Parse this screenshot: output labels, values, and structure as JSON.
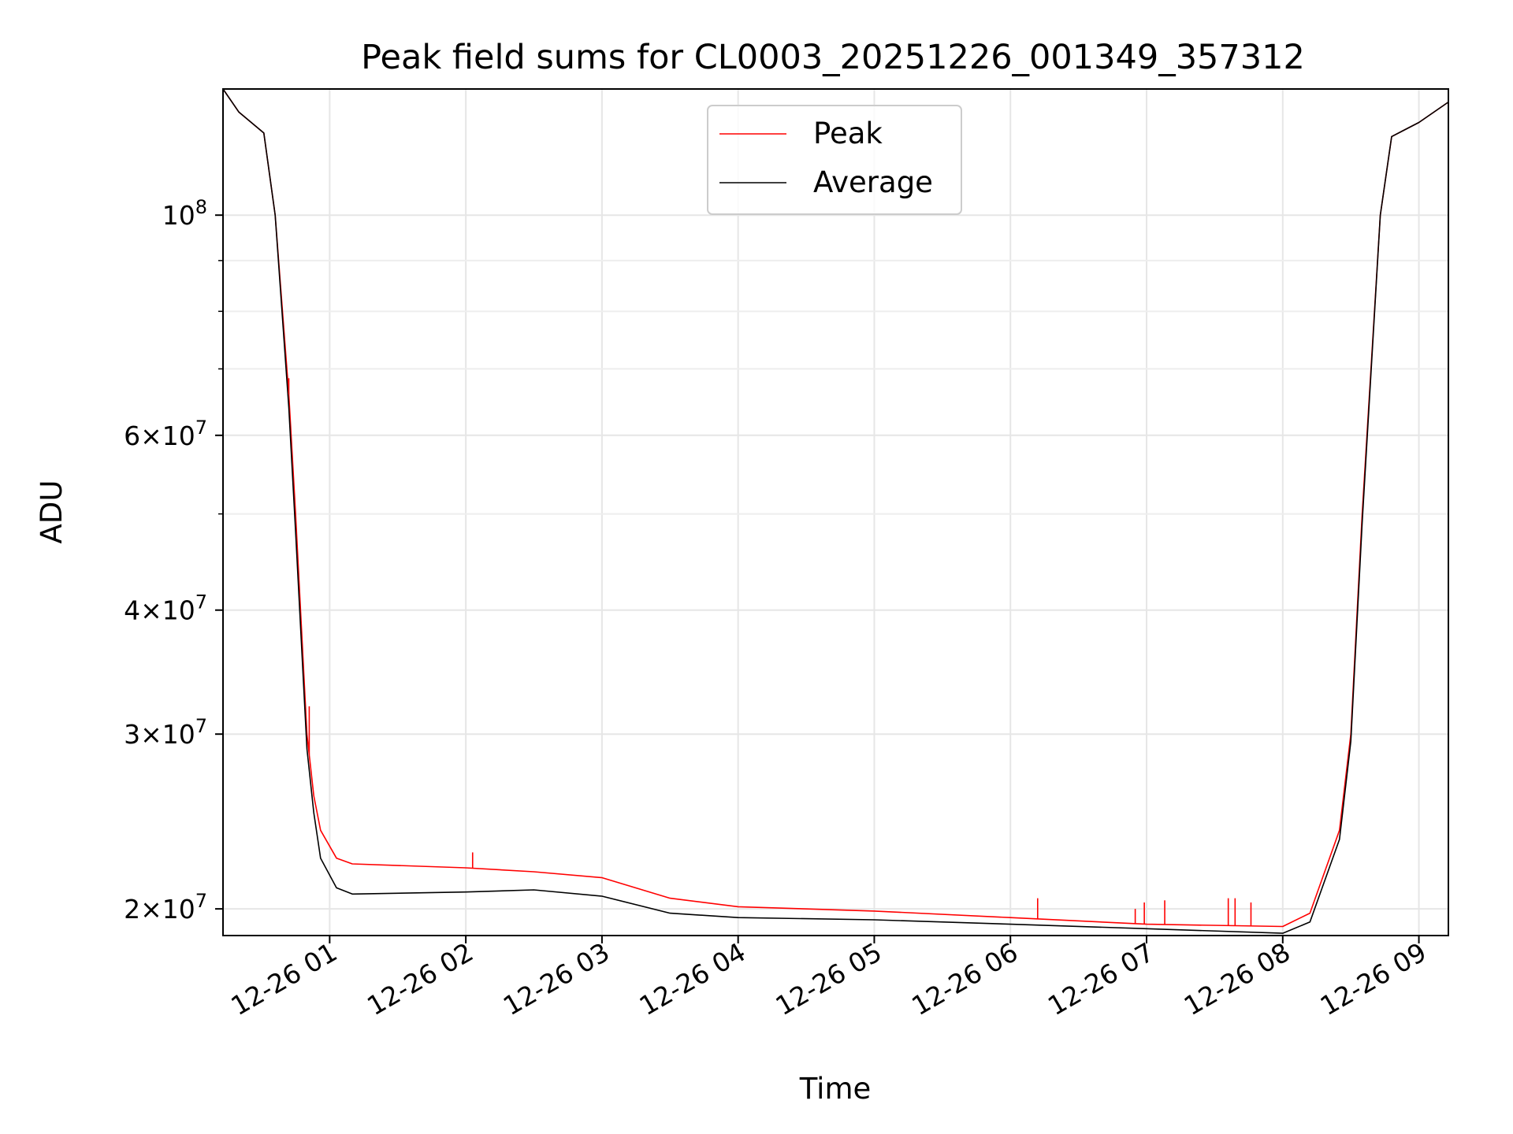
{
  "chart_data": {
    "type": "line",
    "title": "Peak field sums for CL0003_20251226_001349_357312",
    "xlabel": "Time",
    "ylabel": "ADU",
    "y_scale": "log",
    "grid": true,
    "legend_position": "top-center",
    "xlim": [
      "2025-12-26 00:13",
      "2025-12-26 09:13"
    ],
    "ylim": [
      18800000,
      134000000
    ],
    "x_ticks": [
      {
        "value": "2025-12-26 01:00",
        "label": "12-26 01"
      },
      {
        "value": "2025-12-26 02:00",
        "label": "12-26 02"
      },
      {
        "value": "2025-12-26 03:00",
        "label": "12-26 03"
      },
      {
        "value": "2025-12-26 04:00",
        "label": "12-26 04"
      },
      {
        "value": "2025-12-26 05:00",
        "label": "12-26 05"
      },
      {
        "value": "2025-12-26 06:00",
        "label": "12-26 06"
      },
      {
        "value": "2025-12-26 07:00",
        "label": "12-26 07"
      },
      {
        "value": "2025-12-26 08:00",
        "label": "12-26 08"
      },
      {
        "value": "2025-12-26 09:00",
        "label": "12-26 09"
      }
    ],
    "y_ticks": [
      {
        "value": 20000000,
        "mantissa": "2",
        "exponent": "7"
      },
      {
        "value": 30000000,
        "mantissa": "3",
        "exponent": "7"
      },
      {
        "value": 40000000,
        "mantissa": "4",
        "exponent": "7"
      },
      {
        "value": 60000000,
        "mantissa": "6",
        "exponent": "7"
      },
      {
        "value": 100000000,
        "mantissa": "",
        "exponent": "8"
      }
    ],
    "y_minor_ticks": [
      50000000,
      70000000,
      80000000,
      90000000
    ],
    "series": [
      {
        "name": "Peak",
        "color": "#ff0000",
        "points": [
          [
            "2025-12-26 00:13",
            134000000
          ],
          [
            "2025-12-26 00:20",
            127000000
          ],
          [
            "2025-12-26 00:31",
            121000000
          ],
          [
            "2025-12-26 00:36",
            100000000
          ],
          [
            "2025-12-26 00:42",
            66000000
          ],
          [
            "2025-12-26 00:45",
            50000000
          ],
          [
            "2025-12-26 00:50",
            30000000
          ],
          [
            "2025-12-26 00:53",
            26000000
          ],
          [
            "2025-12-26 00:56",
            24000000
          ],
          [
            "2025-12-26 01:03",
            22500000
          ],
          [
            "2025-12-26 01:10",
            22200000
          ],
          [
            "2025-12-26 02:00",
            22000000
          ],
          [
            "2025-12-26 02:30",
            21800000
          ],
          [
            "2025-12-26 03:00",
            21500000
          ],
          [
            "2025-12-26 03:30",
            20500000
          ],
          [
            "2025-12-26 04:00",
            20100000
          ],
          [
            "2025-12-26 05:00",
            19900000
          ],
          [
            "2025-12-26 06:00",
            19600000
          ],
          [
            "2025-12-26 07:00",
            19300000
          ],
          [
            "2025-12-26 08:00",
            19200000
          ],
          [
            "2025-12-26 08:12",
            19800000
          ],
          [
            "2025-12-26 08:25",
            24000000
          ],
          [
            "2025-12-26 08:30",
            30000000
          ],
          [
            "2025-12-26 08:35",
            50000000
          ],
          [
            "2025-12-26 08:43",
            100000000
          ],
          [
            "2025-12-26 08:48",
            120000000
          ],
          [
            "2025-12-26 09:00",
            124000000
          ],
          [
            "2025-12-26 09:13",
            130000000
          ]
        ],
        "spikes": [
          [
            "2025-12-26 00:42",
            68500000
          ],
          [
            "2025-12-26 00:51",
            32000000
          ],
          [
            "2025-12-26 02:03",
            22800000
          ],
          [
            "2025-12-26 06:12",
            20500000
          ],
          [
            "2025-12-26 06:55",
            20000000
          ],
          [
            "2025-12-26 06:59",
            20300000
          ],
          [
            "2025-12-26 07:08",
            20400000
          ],
          [
            "2025-12-26 07:36",
            20500000
          ],
          [
            "2025-12-26 07:39",
            20500000
          ],
          [
            "2025-12-26 07:46",
            20300000
          ]
        ]
      },
      {
        "name": "Average",
        "color": "#000000",
        "points": [
          [
            "2025-12-26 00:13",
            134000000
          ],
          [
            "2025-12-26 00:20",
            127000000
          ],
          [
            "2025-12-26 00:31",
            121000000
          ],
          [
            "2025-12-26 00:36",
            100000000
          ],
          [
            "2025-12-26 00:42",
            64000000
          ],
          [
            "2025-12-26 00:45",
            48000000
          ],
          [
            "2025-12-26 00:50",
            29000000
          ],
          [
            "2025-12-26 00:53",
            25000000
          ],
          [
            "2025-12-26 00:56",
            22500000
          ],
          [
            "2025-12-26 01:03",
            21000000
          ],
          [
            "2025-12-26 01:10",
            20700000
          ],
          [
            "2025-12-26 02:00",
            20800000
          ],
          [
            "2025-12-26 02:30",
            20900000
          ],
          [
            "2025-12-26 03:00",
            20600000
          ],
          [
            "2025-12-26 03:30",
            19800000
          ],
          [
            "2025-12-26 04:00",
            19600000
          ],
          [
            "2025-12-26 05:00",
            19500000
          ],
          [
            "2025-12-26 06:00",
            19300000
          ],
          [
            "2025-12-26 07:00",
            19100000
          ],
          [
            "2025-12-26 08:00",
            18900000
          ],
          [
            "2025-12-26 08:12",
            19400000
          ],
          [
            "2025-12-26 08:25",
            23500000
          ],
          [
            "2025-12-26 08:30",
            29500000
          ],
          [
            "2025-12-26 08:35",
            49000000
          ],
          [
            "2025-12-26 08:43",
            100000000
          ],
          [
            "2025-12-26 08:48",
            120000000
          ],
          [
            "2025-12-26 09:00",
            124000000
          ],
          [
            "2025-12-26 09:13",
            130000000
          ]
        ]
      }
    ]
  }
}
